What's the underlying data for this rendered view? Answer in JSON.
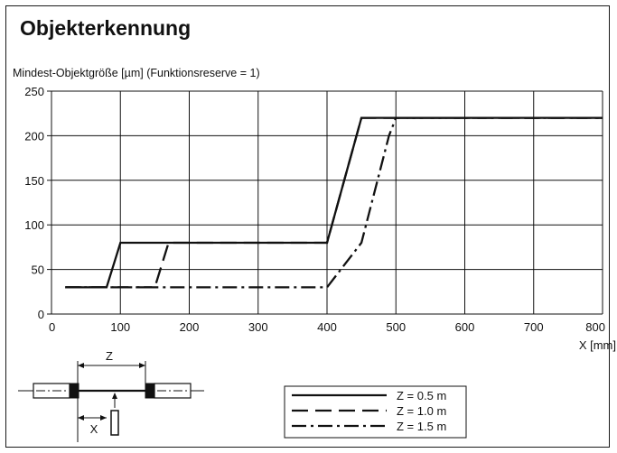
{
  "title": "Objekterkennung",
  "subtitle": "Mindest-Objektgröße [µm] (Funktionsreserve = 1)",
  "chart_data": {
    "type": "line",
    "title": "Objekterkennung",
    "ylabel": "Mindest-Objektgröße [µm] (Funktionsreserve = 1)",
    "xlabel": "X [mm]",
    "xlim": [
      0,
      800
    ],
    "ylim": [
      0,
      250
    ],
    "xticks": [
      0,
      100,
      200,
      300,
      400,
      500,
      600,
      700,
      800
    ],
    "yticks": [
      0,
      50,
      100,
      150,
      200,
      250
    ],
    "grid": true,
    "legend_position": "bottom-right",
    "series": [
      {
        "name": "Z = 0.5 m",
        "style": "solid",
        "x": [
          20,
          80,
          100,
          400,
          450,
          800
        ],
        "y": [
          30,
          30,
          80,
          80,
          220,
          220
        ]
      },
      {
        "name": "Z = 1.0 m",
        "style": "dashed",
        "x": [
          20,
          150,
          170,
          400,
          450,
          800
        ],
        "y": [
          30,
          30,
          80,
          80,
          220,
          220
        ]
      },
      {
        "name": "Z = 1.5 m",
        "style": "dashdot",
        "x": [
          20,
          400,
          420,
          450,
          490,
          500,
          800
        ],
        "y": [
          30,
          30,
          50,
          80,
          200,
          220,
          220
        ]
      }
    ]
  },
  "diagram": {
    "z_label": "Z",
    "x_label": "X"
  },
  "colors": {
    "line": "#111111",
    "grid": "#111111"
  }
}
